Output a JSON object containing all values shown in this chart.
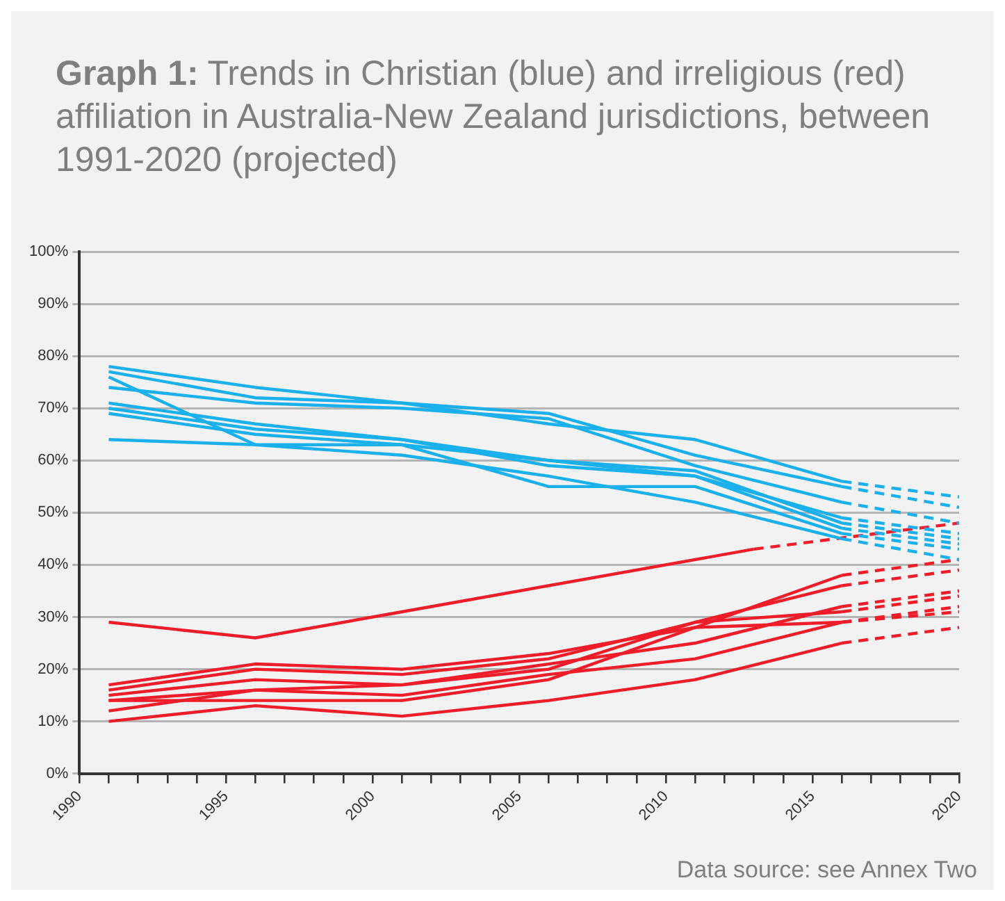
{
  "chart_data": {
    "type": "line",
    "title": "Graph 1: Trends in Christian (blue) and irreligious (red) affiliation in Australia-New Zealand jurisdictions, between 1991-2020 (projected)",
    "annotations": [
      "Data source: see Annex Two"
    ],
    "xlim": [
      1990,
      2020
    ],
    "xticks": [
      1990,
      {
        "value": 1991,
        "label": null
      },
      {
        "value": 1992,
        "label": null
      },
      {
        "value": 1993,
        "label": null
      },
      {
        "value": 1994,
        "label": null
      },
      1995,
      {
        "value": 1996,
        "label": null
      },
      {
        "value": 1997,
        "label": null
      },
      {
        "value": 1998,
        "label": null
      },
      {
        "value": 1999,
        "label": null
      },
      2000,
      {
        "value": 2001,
        "label": null
      },
      {
        "value": 2002,
        "label": null
      },
      {
        "value": 2003,
        "label": null
      },
      {
        "value": 2004,
        "label": null
      },
      2005,
      {
        "value": 2006,
        "label": null
      },
      {
        "value": 2007,
        "label": null
      },
      {
        "value": 2008,
        "label": null
      },
      {
        "value": 2009,
        "label": null
      },
      2010,
      {
        "value": 2011,
        "label": null
      },
      {
        "value": 2012,
        "label": null
      },
      {
        "value": 2013,
        "label": null
      },
      {
        "value": 2014,
        "label": null
      },
      2015,
      {
        "value": 2016,
        "label": null
      },
      {
        "value": 2017,
        "label": null
      },
      {
        "value": 2018,
        "label": null
      },
      {
        "value": 2019,
        "label": null
      },
      2020
    ],
    "ylim": [
      0,
      100
    ],
    "yticks": [
      {
        "value": 0,
        "label": "0%"
      },
      {
        "value": 10,
        "label": "10%"
      },
      {
        "value": 20,
        "label": "20%"
      },
      {
        "value": 30,
        "label": "30%"
      },
      {
        "value": 40,
        "label": "40%"
      },
      {
        "value": 50,
        "label": "50%"
      },
      {
        "value": 60,
        "label": "60%"
      },
      {
        "value": 70,
        "label": "70%"
      },
      {
        "value": 80,
        "label": "80%"
      },
      {
        "value": 90,
        "label": "90%"
      },
      {
        "value": 100,
        "label": "100%"
      }
    ],
    "grid": "y",
    "legend": false,
    "marker": "none",
    "series": [
      {
        "color": "#1ab0ec",
        "line_style": "solid",
        "x": [
          1991,
          1996,
          2001,
          2006,
          2011,
          2016
        ],
        "values": [
          78,
          74,
          71,
          67,
          64,
          56
        ]
      },
      {
        "color": "#1ab0ec",
        "line_style": "solid",
        "x": [
          1991,
          1996,
          2001,
          2006,
          2011,
          2016
        ],
        "values": [
          77,
          72,
          71,
          69,
          61,
          55
        ]
      },
      {
        "color": "#1ab0ec",
        "line_style": "solid",
        "x": [
          1991,
          1996,
          2001,
          2006,
          2011,
          2016
        ],
        "values": [
          74,
          71,
          70,
          68,
          59,
          52
        ]
      },
      {
        "color": "#1ab0ec",
        "line_style": "solid",
        "x": [
          1991,
          1996,
          2001,
          2006,
          2011,
          2016
        ],
        "values": [
          76,
          63,
          63,
          60,
          57,
          49
        ]
      },
      {
        "color": "#1ab0ec",
        "line_style": "solid",
        "x": [
          1991,
          1996,
          2001,
          2006,
          2011,
          2016
        ],
        "values": [
          71,
          67,
          64,
          60,
          58,
          48
        ]
      },
      {
        "color": "#1ab0ec",
        "line_style": "solid",
        "x": [
          1991,
          1996,
          2001,
          2006,
          2011,
          2016
        ],
        "values": [
          70,
          66,
          64,
          59,
          57,
          47
        ]
      },
      {
        "color": "#1ab0ec",
        "line_style": "solid",
        "x": [
          1991,
          1996,
          2001,
          2006,
          2011,
          2016
        ],
        "values": [
          69,
          65,
          63,
          55,
          55,
          46
        ]
      },
      {
        "color": "#1ab0ec",
        "line_style": "solid",
        "x": [
          1991,
          1996,
          2001,
          2006,
          2011,
          2016
        ],
        "values": [
          64,
          63,
          61,
          57,
          52,
          45
        ]
      },
      {
        "color": "#1ab0ec",
        "line_style": "dashed",
        "x": [
          2016,
          2020
        ],
        "values": [
          56,
          53
        ]
      },
      {
        "color": "#1ab0ec",
        "line_style": "dashed",
        "x": [
          2016,
          2020
        ],
        "values": [
          55,
          51
        ]
      },
      {
        "color": "#1ab0ec",
        "line_style": "dashed",
        "x": [
          2016,
          2020
        ],
        "values": [
          52,
          48
        ]
      },
      {
        "color": "#1ab0ec",
        "line_style": "dashed",
        "x": [
          2016,
          2020
        ],
        "values": [
          49,
          46
        ]
      },
      {
        "color": "#1ab0ec",
        "line_style": "dashed",
        "x": [
          2016,
          2020
        ],
        "values": [
          48,
          45
        ]
      },
      {
        "color": "#1ab0ec",
        "line_style": "dashed",
        "x": [
          2016,
          2020
        ],
        "values": [
          47,
          44
        ]
      },
      {
        "color": "#1ab0ec",
        "line_style": "dashed",
        "x": [
          2016,
          2020
        ],
        "values": [
          46,
          43
        ]
      },
      {
        "color": "#1ab0ec",
        "line_style": "dashed",
        "x": [
          2016,
          2020
        ],
        "values": [
          45,
          41
        ]
      },
      {
        "color": "#ef1c2a",
        "line_style": "solid",
        "x": [
          1991,
          1996,
          2001,
          2013
        ],
        "values": [
          29,
          26,
          31,
          43
        ]
      },
      {
        "color": "#ef1c2a",
        "line_style": "solid",
        "x": [
          1991,
          1996,
          2001,
          2006,
          2011,
          2016
        ],
        "values": [
          17,
          21,
          20,
          23,
          28,
          38
        ]
      },
      {
        "color": "#ef1c2a",
        "line_style": "solid",
        "x": [
          1991,
          1996,
          2001,
          2006,
          2011,
          2016
        ],
        "values": [
          16,
          20,
          19,
          22,
          29,
          36
        ]
      },
      {
        "color": "#ef1c2a",
        "line_style": "solid",
        "x": [
          1991,
          1996,
          2001,
          2006,
          2011,
          2016
        ],
        "values": [
          15,
          18,
          17,
          21,
          25,
          32
        ]
      },
      {
        "color": "#ef1c2a",
        "line_style": "solid",
        "x": [
          1991,
          1996,
          2001,
          2006,
          2011,
          2016
        ],
        "values": [
          14,
          16,
          17,
          20,
          29,
          31
        ]
      },
      {
        "color": "#ef1c2a",
        "line_style": "solid",
        "x": [
          1991,
          1996,
          2001,
          2006,
          2011,
          2016
        ],
        "values": [
          14,
          14,
          14,
          18,
          28,
          29
        ]
      },
      {
        "color": "#ef1c2a",
        "line_style": "solid",
        "x": [
          1991,
          1996,
          2001,
          2006,
          2011,
          2016
        ],
        "values": [
          12,
          16,
          15,
          19,
          22,
          29
        ]
      },
      {
        "color": "#ef1c2a",
        "line_style": "solid",
        "x": [
          1991,
          1996,
          2001,
          2006,
          2011,
          2016
        ],
        "values": [
          10,
          13,
          11,
          14,
          18,
          25
        ]
      },
      {
        "color": "#ef1c2a",
        "line_style": "dashed",
        "x": [
          2013,
          2020
        ],
        "values": [
          43,
          48
        ]
      },
      {
        "color": "#ef1c2a",
        "line_style": "dashed",
        "x": [
          2016,
          2020
        ],
        "values": [
          38,
          41
        ]
      },
      {
        "color": "#ef1c2a",
        "line_style": "dashed",
        "x": [
          2016,
          2020
        ],
        "values": [
          36,
          39
        ]
      },
      {
        "color": "#ef1c2a",
        "line_style": "dashed",
        "x": [
          2016,
          2020
        ],
        "values": [
          32,
          35
        ]
      },
      {
        "color": "#ef1c2a",
        "line_style": "dashed",
        "x": [
          2016,
          2020
        ],
        "values": [
          31,
          34
        ]
      },
      {
        "color": "#ef1c2a",
        "line_style": "dashed",
        "x": [
          2016,
          2020
        ],
        "values": [
          29,
          32
        ]
      },
      {
        "color": "#ef1c2a",
        "line_style": "dashed",
        "x": [
          2016,
          2020
        ],
        "values": [
          29,
          31
        ]
      },
      {
        "color": "#ef1c2a",
        "line_style": "dashed",
        "x": [
          2016,
          2020
        ],
        "values": [
          25,
          28
        ]
      }
    ]
  }
}
